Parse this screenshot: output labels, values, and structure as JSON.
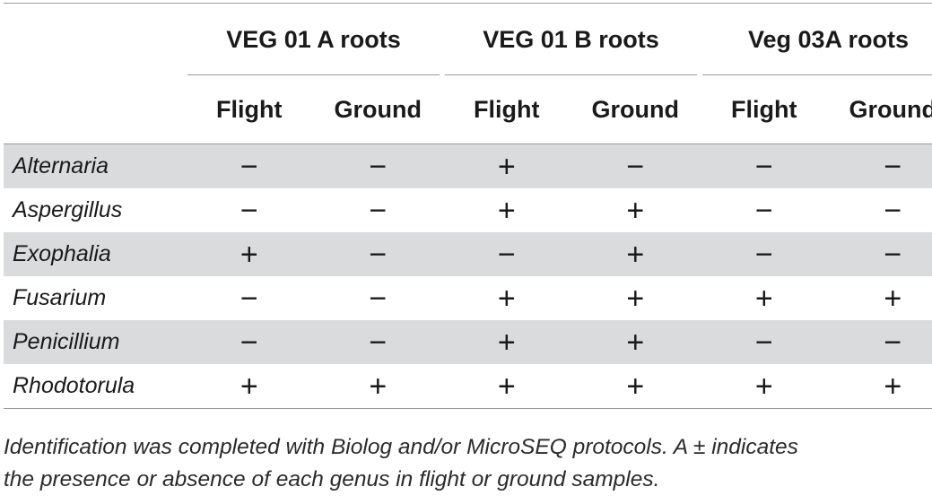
{
  "table": {
    "groups": [
      "VEG 01 A roots",
      "VEG 01 B roots",
      "Veg 03A roots"
    ],
    "subheaders": [
      "Flight",
      "Ground",
      "Flight",
      "Ground",
      "Flight",
      "Ground"
    ],
    "rows": [
      {
        "genus": "Alternaria",
        "values": [
          "−",
          "−",
          "+",
          "−",
          "−",
          "−"
        ],
        "shaded": true
      },
      {
        "genus": "Aspergillus",
        "values": [
          "−",
          "−",
          "+",
          "+",
          "−",
          "−"
        ],
        "shaded": false
      },
      {
        "genus": "Exophalia",
        "values": [
          "+",
          "−",
          "−",
          "+",
          "−",
          "−"
        ],
        "shaded": true
      },
      {
        "genus": "Fusarium",
        "values": [
          "−",
          "−",
          "+",
          "+",
          "+",
          "+"
        ],
        "shaded": false
      },
      {
        "genus": "Penicillium",
        "values": [
          "−",
          "−",
          "+",
          "+",
          "−",
          "−"
        ],
        "shaded": true
      },
      {
        "genus": "Rhodotorula",
        "values": [
          "+",
          "+",
          "+",
          "+",
          "+",
          "+"
        ],
        "shaded": false
      }
    ]
  },
  "footnote": {
    "line1": "Identification was completed with Biolog and/or MicroSEQ protocols. A ± indicates",
    "line2": "the presence or absence of each genus in flight or ground samples."
  }
}
